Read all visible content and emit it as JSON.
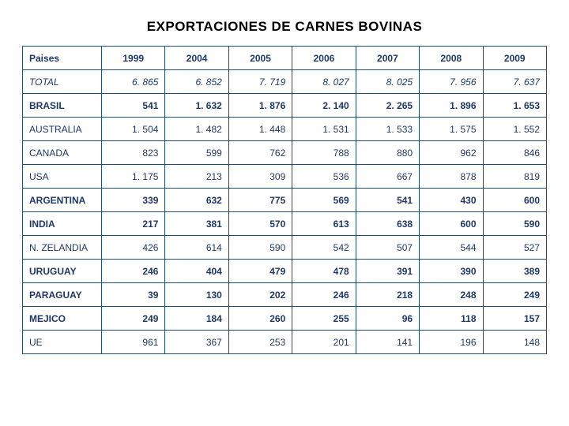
{
  "title": "EXPORTACIONES  DE CARNES BOVINAS",
  "columns": [
    "Paises",
    "1999",
    "2004",
    "2005",
    "2006",
    "2007",
    "2008",
    "2009"
  ],
  "rows": [
    {
      "label": "TOTAL",
      "values": [
        "6. 865",
        "6. 852",
        "7. 719",
        "8. 027",
        "8. 025",
        "7. 956",
        "7. 637"
      ],
      "style": "total"
    },
    {
      "label": "BRASIL",
      "values": [
        "541",
        "1. 632",
        "1. 876",
        "2. 140",
        "2. 265",
        "1. 896",
        "1. 653"
      ],
      "style": "bold"
    },
    {
      "label": "AUSTRALIA",
      "values": [
        "1. 504",
        "1. 482",
        "1. 448",
        "1. 531",
        "1. 533",
        "1. 575",
        "1. 552"
      ],
      "style": "normal"
    },
    {
      "label": "CANADA",
      "values": [
        "823",
        "599",
        "762",
        "788",
        "880",
        "962",
        "846"
      ],
      "style": "normal"
    },
    {
      "label": "USA",
      "values": [
        "1. 175",
        "213",
        "309",
        "536",
        "667",
        "878",
        "819"
      ],
      "style": "normal"
    },
    {
      "label": "ARGENTINA",
      "values": [
        "339",
        "632",
        "775",
        "569",
        "541",
        "430",
        "600"
      ],
      "style": "bold-label"
    },
    {
      "label": "INDIA",
      "values": [
        "217",
        "381",
        "570",
        "613",
        "638",
        "600",
        "590"
      ],
      "style": "bold-label"
    },
    {
      "label": "N. ZELANDIA",
      "values": [
        "426",
        "614",
        "590",
        "542",
        "507",
        "544",
        "527"
      ],
      "style": "normal"
    },
    {
      "label": "URUGUAY",
      "values": [
        "246",
        "404",
        "479",
        "478",
        "391",
        "390",
        "389"
      ],
      "style": "bold-label"
    },
    {
      "label": "PARAGUAY",
      "values": [
        "39",
        "130",
        "202",
        "246",
        "218",
        "248",
        "249"
      ],
      "style": "bold-label"
    },
    {
      "label": "MEJICO",
      "values": [
        "249",
        "184",
        "260",
        "255",
        "96",
        "118",
        "157"
      ],
      "style": "bold-label"
    },
    {
      "label": "UE",
      "values": [
        "961",
        "367",
        "253",
        "201",
        "141",
        "196",
        "148"
      ],
      "style": "normal"
    }
  ],
  "colors": {
    "border": "#1f4e79",
    "text": "#1f3864",
    "title": "#000000",
    "background": "#ffffff"
  },
  "column_widths": [
    "100px",
    "auto",
    "auto",
    "auto",
    "auto",
    "auto",
    "auto",
    "auto"
  ]
}
